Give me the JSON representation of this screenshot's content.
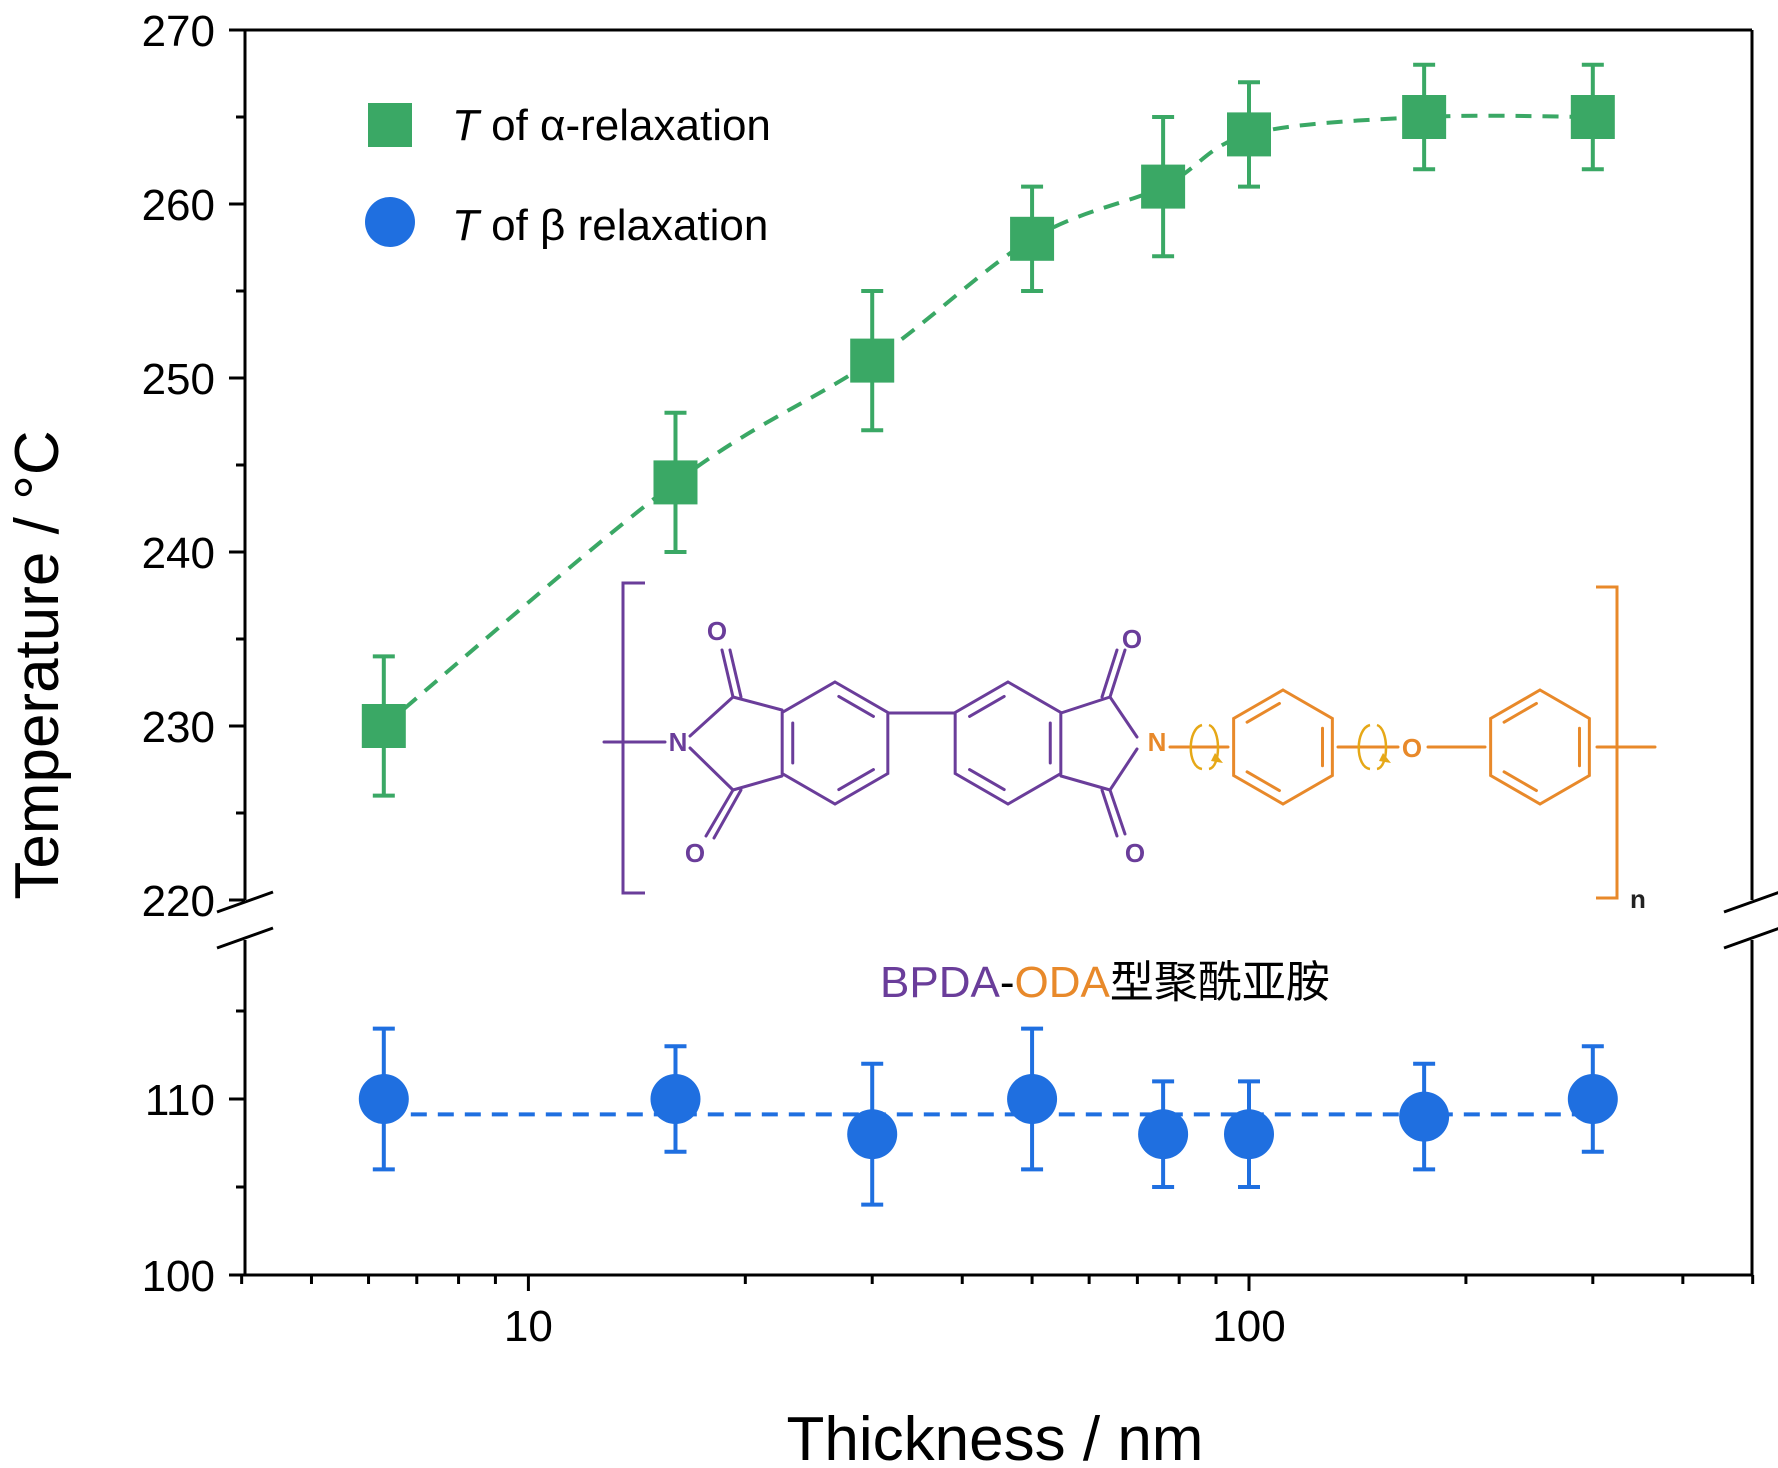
{
  "chart_data": {
    "type": "scatter",
    "xlabel": "Thickness / nm",
    "ylabel": "Temperature / °C",
    "xscale": "log",
    "xlim": [
      4,
      500
    ],
    "x_tick_labels": [
      "10",
      "100"
    ],
    "y_axis_break": true,
    "ylim_upper": [
      220,
      270
    ],
    "ylim_lower": [
      100,
      120
    ],
    "y_tick_labels_upper": [
      "220",
      "230",
      "240",
      "250",
      "260",
      "270"
    ],
    "y_tick_labels_lower": [
      "100",
      "110"
    ],
    "legend_position": "top-left",
    "series": [
      {
        "name_symbol": "T",
        "name_rest": " of α-relaxation",
        "marker": "square",
        "color": "#3aa865",
        "line": "dashed",
        "x": [
          6.3,
          16,
          30,
          50,
          76,
          100,
          175,
          300
        ],
        "y": [
          230,
          244,
          251,
          258,
          261,
          264,
          265,
          265
        ],
        "error": [
          4,
          4,
          4,
          3,
          4,
          3,
          3,
          3
        ]
      },
      {
        "name_symbol": "T",
        "name_rest": " of β relaxation",
        "marker": "circle",
        "color": "#1f6fe0",
        "line": "dashed",
        "x": [
          6.3,
          16,
          30,
          50,
          76,
          100,
          175,
          300
        ],
        "y": [
          110,
          110,
          108,
          110,
          108,
          108,
          109,
          110
        ],
        "error": [
          4,
          3,
          4,
          4,
          3,
          3,
          3,
          3
        ]
      }
    ],
    "annotation": {
      "structure_labels": {
        "oxygen": "O",
        "nitrogen": "N",
        "repeat": "n"
      },
      "caption_part1": "BPDA",
      "caption_sep": "-",
      "caption_part2": "ODA",
      "caption_part3": "型聚酰亚胺",
      "purple": "#6a3d9a",
      "orange": "#e8892a",
      "arrow_color": "#e6a817"
    }
  }
}
